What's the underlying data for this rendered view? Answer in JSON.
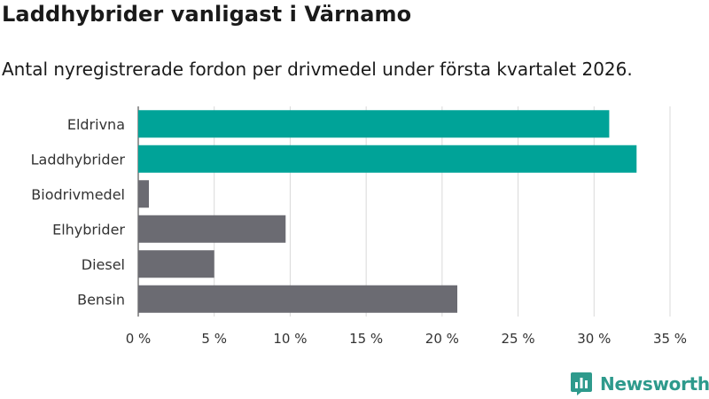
{
  "header": {
    "title": "Laddhybrider vanligast i Värnamo",
    "subtitle": "Antal nyregistrerade fordon per drivmedel under första kvartalet 2026."
  },
  "brand": {
    "name": "Newsworthy",
    "color": "#2e9a8c"
  },
  "colors": {
    "highlight": "#00a398",
    "default": "#6b6b72",
    "grid": "#d9d9d9"
  },
  "chart_data": {
    "type": "bar",
    "orientation": "horizontal",
    "categories": [
      "Eldrivna",
      "Laddhybrider",
      "Biodrivmedel",
      "Elhybrider",
      "Diesel",
      "Bensin"
    ],
    "values": [
      31.0,
      32.8,
      0.7,
      9.7,
      5.0,
      21.0
    ],
    "highlighted": [
      true,
      true,
      false,
      false,
      false,
      false
    ],
    "xlim": [
      0,
      35
    ],
    "xticks": [
      0,
      5,
      10,
      15,
      20,
      25,
      30,
      35
    ],
    "xtick_labels": [
      "0 %",
      "5 %",
      "10 %",
      "15 %",
      "20 %",
      "25 %",
      "30 %",
      "35 %"
    ],
    "grid": "vertical",
    "xlabel": "",
    "ylabel": ""
  }
}
